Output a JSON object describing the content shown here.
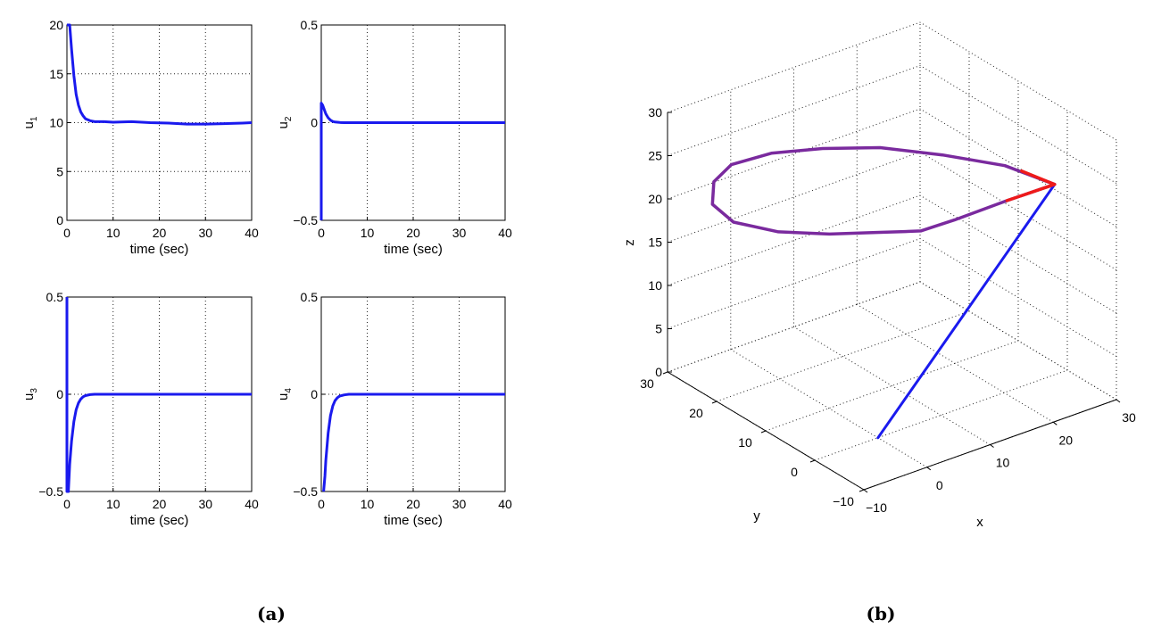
{
  "captions": [
    "(a)",
    "(b)"
  ],
  "chart_data": [
    {
      "type": "line",
      "xlabel": "time (sec)",
      "ylabel": "u",
      "ylabel_subscript": "1",
      "xlim": [
        0,
        40
      ],
      "ylim": [
        0,
        20
      ],
      "xticks": [
        0,
        10,
        20,
        30,
        40
      ],
      "yticks": [
        0,
        5,
        10,
        15,
        20
      ],
      "grid": true,
      "color": "#1a1aee",
      "x": [
        0,
        0.3,
        0.6,
        1,
        1.5,
        2,
        2.5,
        3,
        3.5,
        4,
        5,
        6,
        8,
        10,
        14,
        18,
        22,
        26,
        30,
        34,
        38,
        40
      ],
      "y": [
        20,
        20,
        20,
        17.5,
        14.8,
        12.9,
        11.8,
        11.1,
        10.7,
        10.4,
        10.2,
        10.1,
        10.1,
        10.05,
        10.1,
        10.0,
        9.95,
        9.85,
        9.85,
        9.9,
        9.95,
        10.0
      ]
    },
    {
      "type": "line",
      "xlabel": "time (sec)",
      "ylabel": "u",
      "ylabel_subscript": "2",
      "xlim": [
        0,
        40
      ],
      "ylim": [
        -0.5,
        0.5
      ],
      "xticks": [
        0,
        10,
        20,
        30,
        40
      ],
      "yticks": [
        -0.5,
        0,
        0.5
      ],
      "grid": true,
      "color": "#1a1aee",
      "x": [
        0,
        0,
        0.3,
        0.6,
        1,
        1.5,
        2,
        2.5,
        3,
        4,
        5,
        10,
        20,
        30,
        40
      ],
      "y": [
        -0.5,
        0.1,
        0.09,
        0.07,
        0.045,
        0.025,
        0.013,
        0.006,
        0.003,
        0.001,
        0,
        0,
        0,
        0,
        0
      ]
    },
    {
      "type": "line",
      "xlabel": "time (sec)",
      "ylabel": "u",
      "ylabel_subscript": "3",
      "xlim": [
        0,
        40
      ],
      "ylim": [
        -0.5,
        0.5
      ],
      "xticks": [
        0,
        10,
        20,
        30,
        40
      ],
      "yticks": [
        -0.5,
        0,
        0.5
      ],
      "grid": true,
      "color": "#1a1aee",
      "x": [
        0,
        0,
        0.3,
        0.6,
        1,
        1.5,
        2,
        2.5,
        3,
        3.5,
        4,
        5,
        6,
        10,
        20,
        30,
        40
      ],
      "y": [
        0.5,
        -0.5,
        -0.5,
        -0.36,
        -0.24,
        -0.14,
        -0.08,
        -0.045,
        -0.025,
        -0.013,
        -0.007,
        -0.002,
        0,
        0,
        0,
        0,
        0
      ]
    },
    {
      "type": "line",
      "xlabel": "time (sec)",
      "ylabel": "u",
      "ylabel_subscript": "4",
      "xlim": [
        0,
        40
      ],
      "ylim": [
        -0.5,
        0.5
      ],
      "xticks": [
        0,
        10,
        20,
        30,
        40
      ],
      "yticks": [
        -0.5,
        0,
        0.5
      ],
      "grid": true,
      "color": "#1a1aee",
      "x": [
        0.5,
        0.8,
        1,
        1.5,
        2,
        2.5,
        3,
        3.5,
        4,
        5,
        6,
        10,
        20,
        30,
        40
      ],
      "y": [
        -0.5,
        -0.42,
        -0.34,
        -0.2,
        -0.11,
        -0.06,
        -0.033,
        -0.018,
        -0.009,
        -0.003,
        0,
        0,
        0,
        0,
        0
      ]
    },
    {
      "type": "line3d",
      "xlabel": "x",
      "ylabel": "y",
      "zlabel": "z",
      "xlim": [
        -10,
        30
      ],
      "ylim": [
        -10,
        30
      ],
      "zlim": [
        0,
        30
      ],
      "xticks": [
        -10,
        0,
        10,
        20,
        30
      ],
      "yticks": [
        -10,
        0,
        10,
        20,
        30
      ],
      "zticks": [
        0,
        5,
        10,
        15,
        20,
        25,
        30
      ],
      "grid": true,
      "colors": {
        "approach": "#1a1aee",
        "orbit": "#7a2a9e",
        "cusp": "#ee1a1a"
      },
      "approach": {
        "x": [
          0,
          28
        ],
        "y": [
          0,
          0
        ],
        "z": [
          0,
          22
        ]
      },
      "orbit": {
        "x": [
          28,
          24,
          18,
          12,
          6,
          1,
          -3,
          -5,
          -6,
          -5,
          -1,
          4,
          9,
          12,
          13,
          16,
          22,
          28
        ],
        "y": [
          0,
          5,
          10,
          15,
          19,
          23,
          26,
          27,
          26,
          23,
          19,
          15,
          12,
          10,
          8,
          5,
          2,
          0
        ],
        "z": [
          22,
          23.5,
          24.6,
          25.3,
          25.4,
          24.8,
          23.5,
          21.7,
          19.7,
          18.4,
          17.6,
          17.4,
          17.3,
          17.3,
          17.8,
          19.3,
          21,
          22
        ]
      }
    }
  ]
}
